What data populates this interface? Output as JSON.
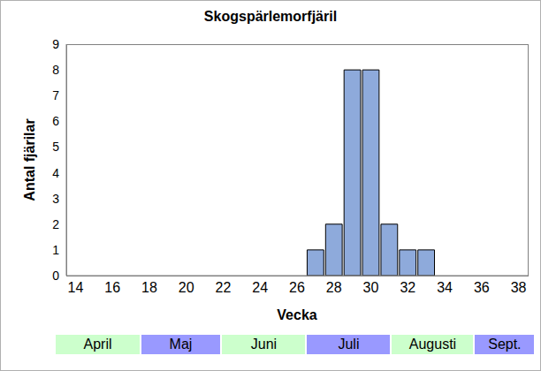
{
  "chart_data": {
    "type": "bar",
    "title": "Skogspärlemorfjäril",
    "x_label": "Vecka",
    "y_label": "Antal fjärilar",
    "x": [
      27,
      28,
      29,
      30,
      31,
      32,
      33
    ],
    "values": [
      1,
      2,
      8,
      8,
      2,
      1,
      1
    ],
    "color": "#8eaadb",
    "xlim": [
      13.5,
      38.5
    ],
    "xticks": [
      14,
      16,
      18,
      20,
      22,
      24,
      26,
      28,
      30,
      32,
      34,
      36,
      38
    ],
    "ylim": [
      0,
      9
    ],
    "yticks": [
      0,
      1,
      2,
      3,
      4,
      5,
      6,
      7,
      8,
      9
    ],
    "grid": false,
    "annotations": [
      {
        "text": "April",
        "from": 12.9,
        "to": 17.5,
        "color": "#ccffcc"
      },
      {
        "text": "Maj",
        "from": 17.5,
        "to": 21.9,
        "color": "#9999ff"
      },
      {
        "text": "Juni",
        "from": 21.9,
        "to": 26.5,
        "color": "#ccffcc"
      },
      {
        "text": "Juli",
        "from": 26.5,
        "to": 31.1,
        "color": "#9999ff"
      },
      {
        "text": "Augusti",
        "from": 31.1,
        "to": 35.6,
        "color": "#ccffcc"
      },
      {
        "text": "Sept.",
        "from": 35.6,
        "to": 38.9,
        "color": "#9999ff"
      }
    ]
  }
}
